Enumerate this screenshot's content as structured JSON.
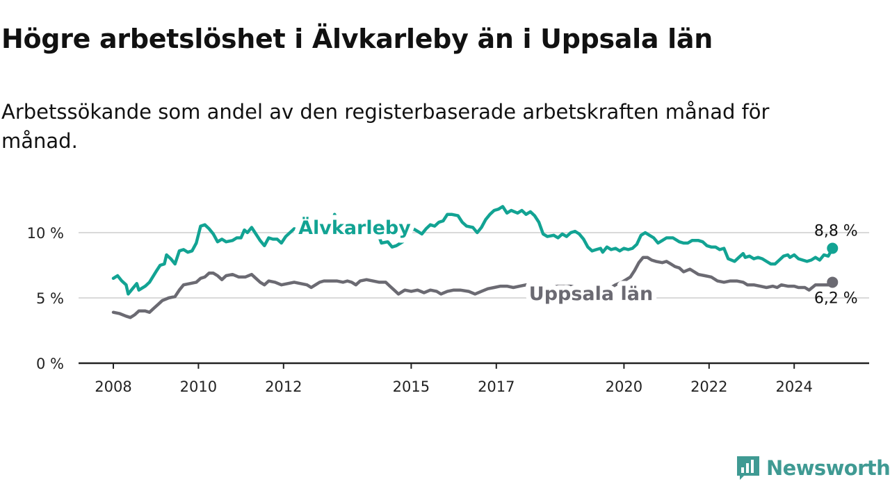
{
  "header": {
    "title": "Högre arbetslöshet i Älvkarleby än i Uppsala län",
    "subtitle": "Arbetssökande som andel av den registerbaserade arbetskraften månad för månad."
  },
  "brand": {
    "name": "Newsworthy",
    "icon": "newsworthy-logo-icon",
    "color": "#3f9a93"
  },
  "chart_data": {
    "type": "line",
    "x_ticks": [
      "2008",
      "2010",
      "2012",
      "2015",
      "2017",
      "2020",
      "2022",
      "2024"
    ],
    "y_ticks": [
      "0 %",
      "5 %",
      "10 %"
    ],
    "ylim": [
      0,
      12.5
    ],
    "xlim": [
      2007.6,
      2025.8
    ],
    "grid": true,
    "series": [
      {
        "name": "Älvkarleby",
        "color": "#12a393",
        "end_label": "8,8 %",
        "points": [
          [
            2008.0,
            6.5
          ],
          [
            2008.1,
            6.7
          ],
          [
            2008.2,
            6.3
          ],
          [
            2008.3,
            6.0
          ],
          [
            2008.35,
            5.3
          ],
          [
            2008.45,
            5.7
          ],
          [
            2008.55,
            6.1
          ],
          [
            2008.6,
            5.6
          ],
          [
            2008.75,
            5.9
          ],
          [
            2008.85,
            6.2
          ],
          [
            2009.0,
            7.0
          ],
          [
            2009.1,
            7.5
          ],
          [
            2009.2,
            7.6
          ],
          [
            2009.25,
            8.3
          ],
          [
            2009.35,
            8.0
          ],
          [
            2009.45,
            7.6
          ],
          [
            2009.55,
            8.6
          ],
          [
            2009.65,
            8.7
          ],
          [
            2009.75,
            8.5
          ],
          [
            2009.85,
            8.6
          ],
          [
            2009.95,
            9.2
          ],
          [
            2010.05,
            10.5
          ],
          [
            2010.15,
            10.6
          ],
          [
            2010.25,
            10.3
          ],
          [
            2010.35,
            9.9
          ],
          [
            2010.45,
            9.3
          ],
          [
            2010.55,
            9.5
          ],
          [
            2010.65,
            9.3
          ],
          [
            2010.8,
            9.4
          ],
          [
            2010.9,
            9.6
          ],
          [
            2011.0,
            9.6
          ],
          [
            2011.08,
            10.2
          ],
          [
            2011.15,
            10.0
          ],
          [
            2011.25,
            10.4
          ],
          [
            2011.35,
            9.9
          ],
          [
            2011.45,
            9.4
          ],
          [
            2011.55,
            9.0
          ],
          [
            2011.65,
            9.6
          ],
          [
            2011.75,
            9.5
          ],
          [
            2011.85,
            9.5
          ],
          [
            2011.95,
            9.2
          ],
          [
            2012.05,
            9.7
          ],
          [
            2012.15,
            10.0
          ],
          [
            2012.25,
            10.3
          ],
          [
            2012.4,
            10.2
          ],
          [
            2012.5,
            10.3
          ],
          [
            2012.6,
            10.3
          ],
          [
            2012.7,
            9.9
          ],
          [
            2012.8,
            10.2
          ],
          [
            2012.9,
            10.0
          ],
          [
            2013.0,
            9.8
          ],
          [
            2013.1,
            10.2
          ],
          [
            2013.2,
            11.4
          ],
          [
            2013.3,
            10.7
          ],
          [
            2013.45,
            10.3
          ],
          [
            2013.6,
            10.2
          ],
          [
            2013.75,
            10.0
          ],
          [
            2013.9,
            9.8
          ],
          [
            2014.05,
            9.8
          ],
          [
            2014.2,
            10.1
          ],
          [
            2014.3,
            9.2
          ],
          [
            2014.45,
            9.3
          ],
          [
            2014.55,
            8.9
          ],
          [
            2014.65,
            9.0
          ],
          [
            2014.8,
            9.3
          ],
          [
            2014.95,
            10.0
          ],
          [
            2015.05,
            10.3
          ],
          [
            2015.15,
            10.1
          ],
          [
            2015.25,
            9.9
          ],
          [
            2015.35,
            10.3
          ],
          [
            2015.45,
            10.6
          ],
          [
            2015.55,
            10.5
          ],
          [
            2015.65,
            10.8
          ],
          [
            2015.75,
            10.9
          ],
          [
            2015.85,
            11.4
          ],
          [
            2015.95,
            11.4
          ],
          [
            2016.1,
            11.3
          ],
          [
            2016.2,
            10.8
          ],
          [
            2016.3,
            10.5
          ],
          [
            2016.45,
            10.4
          ],
          [
            2016.55,
            10.0
          ],
          [
            2016.65,
            10.4
          ],
          [
            2016.75,
            11.0
          ],
          [
            2016.85,
            11.4
          ],
          [
            2016.95,
            11.7
          ],
          [
            2017.05,
            11.8
          ],
          [
            2017.15,
            12.0
          ],
          [
            2017.25,
            11.5
          ],
          [
            2017.35,
            11.7
          ],
          [
            2017.5,
            11.5
          ],
          [
            2017.6,
            11.7
          ],
          [
            2017.7,
            11.4
          ],
          [
            2017.8,
            11.6
          ],
          [
            2017.9,
            11.3
          ],
          [
            2018.0,
            10.8
          ],
          [
            2018.1,
            9.9
          ],
          [
            2018.2,
            9.7
          ],
          [
            2018.35,
            9.8
          ],
          [
            2018.45,
            9.6
          ],
          [
            2018.55,
            9.9
          ],
          [
            2018.65,
            9.7
          ],
          [
            2018.75,
            10.0
          ],
          [
            2018.85,
            10.1
          ],
          [
            2018.95,
            9.9
          ],
          [
            2019.05,
            9.5
          ],
          [
            2019.15,
            8.9
          ],
          [
            2019.25,
            8.6
          ],
          [
            2019.35,
            8.7
          ],
          [
            2019.45,
            8.8
          ],
          [
            2019.5,
            8.5
          ],
          [
            2019.6,
            8.9
          ],
          [
            2019.7,
            8.7
          ],
          [
            2019.8,
            8.8
          ],
          [
            2019.9,
            8.6
          ],
          [
            2020.0,
            8.8
          ],
          [
            2020.1,
            8.7
          ],
          [
            2020.2,
            8.8
          ],
          [
            2020.3,
            9.1
          ],
          [
            2020.4,
            9.8
          ],
          [
            2020.5,
            10.0
          ],
          [
            2020.6,
            9.8
          ],
          [
            2020.7,
            9.6
          ],
          [
            2020.8,
            9.2
          ],
          [
            2020.9,
            9.4
          ],
          [
            2021.0,
            9.6
          ],
          [
            2021.15,
            9.6
          ],
          [
            2021.3,
            9.3
          ],
          [
            2021.4,
            9.2
          ],
          [
            2021.5,
            9.2
          ],
          [
            2021.6,
            9.4
          ],
          [
            2021.75,
            9.4
          ],
          [
            2021.85,
            9.3
          ],
          [
            2021.95,
            9.0
          ],
          [
            2022.05,
            8.9
          ],
          [
            2022.15,
            8.9
          ],
          [
            2022.25,
            8.7
          ],
          [
            2022.35,
            8.8
          ],
          [
            2022.45,
            8.0
          ],
          [
            2022.6,
            7.8
          ],
          [
            2022.7,
            8.1
          ],
          [
            2022.8,
            8.4
          ],
          [
            2022.85,
            8.1
          ],
          [
            2022.95,
            8.2
          ],
          [
            2023.05,
            8.0
          ],
          [
            2023.15,
            8.1
          ],
          [
            2023.25,
            8.0
          ],
          [
            2023.35,
            7.8
          ],
          [
            2023.45,
            7.6
          ],
          [
            2023.55,
            7.6
          ],
          [
            2023.65,
            7.9
          ],
          [
            2023.75,
            8.2
          ],
          [
            2023.85,
            8.3
          ],
          [
            2023.9,
            8.1
          ],
          [
            2024.0,
            8.3
          ],
          [
            2024.1,
            8.0
          ],
          [
            2024.2,
            7.9
          ],
          [
            2024.3,
            7.8
          ],
          [
            2024.4,
            7.9
          ],
          [
            2024.5,
            8.1
          ],
          [
            2024.6,
            7.9
          ],
          [
            2024.7,
            8.3
          ],
          [
            2024.8,
            8.2
          ],
          [
            2024.9,
            8.8
          ]
        ]
      },
      {
        "name": "Uppsala län",
        "color": "#6b6a72",
        "end_label": "6,2 %",
        "points": [
          [
            2008.0,
            3.9
          ],
          [
            2008.15,
            3.8
          ],
          [
            2008.3,
            3.6
          ],
          [
            2008.4,
            3.5
          ],
          [
            2008.5,
            3.7
          ],
          [
            2008.6,
            4.0
          ],
          [
            2008.75,
            4.0
          ],
          [
            2008.85,
            3.9
          ],
          [
            2008.95,
            4.2
          ],
          [
            2009.05,
            4.5
          ],
          [
            2009.15,
            4.8
          ],
          [
            2009.3,
            5.0
          ],
          [
            2009.45,
            5.1
          ],
          [
            2009.55,
            5.6
          ],
          [
            2009.65,
            6.0
          ],
          [
            2009.8,
            6.1
          ],
          [
            2009.95,
            6.2
          ],
          [
            2010.05,
            6.5
          ],
          [
            2010.15,
            6.6
          ],
          [
            2010.25,
            6.9
          ],
          [
            2010.35,
            6.9
          ],
          [
            2010.45,
            6.7
          ],
          [
            2010.55,
            6.4
          ],
          [
            2010.65,
            6.7
          ],
          [
            2010.8,
            6.8
          ],
          [
            2010.95,
            6.6
          ],
          [
            2011.1,
            6.6
          ],
          [
            2011.25,
            6.8
          ],
          [
            2011.35,
            6.5
          ],
          [
            2011.45,
            6.2
          ],
          [
            2011.55,
            6.0
          ],
          [
            2011.65,
            6.3
          ],
          [
            2011.8,
            6.2
          ],
          [
            2011.95,
            6.0
          ],
          [
            2012.1,
            6.1
          ],
          [
            2012.25,
            6.2
          ],
          [
            2012.4,
            6.1
          ],
          [
            2012.55,
            6.0
          ],
          [
            2012.65,
            5.8
          ],
          [
            2012.75,
            6.0
          ],
          [
            2012.85,
            6.2
          ],
          [
            2012.95,
            6.3
          ],
          [
            2013.1,
            6.3
          ],
          [
            2013.25,
            6.3
          ],
          [
            2013.4,
            6.2
          ],
          [
            2013.5,
            6.3
          ],
          [
            2013.6,
            6.2
          ],
          [
            2013.7,
            6.0
          ],
          [
            2013.8,
            6.3
          ],
          [
            2013.95,
            6.4
          ],
          [
            2014.1,
            6.3
          ],
          [
            2014.25,
            6.2
          ],
          [
            2014.4,
            6.2
          ],
          [
            2014.5,
            5.9
          ],
          [
            2014.6,
            5.6
          ],
          [
            2014.7,
            5.3
          ],
          [
            2014.85,
            5.6
          ],
          [
            2015.0,
            5.5
          ],
          [
            2015.15,
            5.6
          ],
          [
            2015.3,
            5.4
          ],
          [
            2015.45,
            5.6
          ],
          [
            2015.6,
            5.5
          ],
          [
            2015.7,
            5.3
          ],
          [
            2015.85,
            5.5
          ],
          [
            2016.0,
            5.6
          ],
          [
            2016.15,
            5.6
          ],
          [
            2016.35,
            5.5
          ],
          [
            2016.5,
            5.3
          ],
          [
            2016.65,
            5.5
          ],
          [
            2016.8,
            5.7
          ],
          [
            2016.95,
            5.8
          ],
          [
            2017.1,
            5.9
          ],
          [
            2017.25,
            5.9
          ],
          [
            2017.4,
            5.8
          ],
          [
            2017.55,
            5.9
          ],
          [
            2017.7,
            6.0
          ],
          [
            2017.85,
            5.9
          ],
          [
            2018.0,
            5.9
          ],
          [
            2018.15,
            5.9
          ],
          [
            2018.3,
            5.8
          ],
          [
            2018.45,
            5.9
          ],
          [
            2018.6,
            5.9
          ],
          [
            2018.75,
            5.9
          ],
          [
            2018.9,
            5.8
          ],
          [
            2019.05,
            5.7
          ],
          [
            2019.2,
            5.6
          ],
          [
            2019.35,
            5.5
          ],
          [
            2019.5,
            5.6
          ],
          [
            2019.65,
            5.7
          ],
          [
            2019.8,
            6.0
          ],
          [
            2019.95,
            6.2
          ],
          [
            2020.05,
            6.4
          ],
          [
            2020.15,
            6.6
          ],
          [
            2020.25,
            7.1
          ],
          [
            2020.35,
            7.7
          ],
          [
            2020.45,
            8.1
          ],
          [
            2020.55,
            8.1
          ],
          [
            2020.65,
            7.9
          ],
          [
            2020.75,
            7.8
          ],
          [
            2020.9,
            7.7
          ],
          [
            2021.0,
            7.8
          ],
          [
            2021.1,
            7.6
          ],
          [
            2021.2,
            7.4
          ],
          [
            2021.3,
            7.3
          ],
          [
            2021.4,
            7.0
          ],
          [
            2021.55,
            7.2
          ],
          [
            2021.65,
            7.0
          ],
          [
            2021.75,
            6.8
          ],
          [
            2021.9,
            6.7
          ],
          [
            2022.05,
            6.6
          ],
          [
            2022.2,
            6.3
          ],
          [
            2022.35,
            6.2
          ],
          [
            2022.5,
            6.3
          ],
          [
            2022.65,
            6.3
          ],
          [
            2022.8,
            6.2
          ],
          [
            2022.9,
            6.0
          ],
          [
            2023.05,
            6.0
          ],
          [
            2023.2,
            5.9
          ],
          [
            2023.35,
            5.8
          ],
          [
            2023.5,
            5.9
          ],
          [
            2023.6,
            5.8
          ],
          [
            2023.7,
            6.0
          ],
          [
            2023.85,
            5.9
          ],
          [
            2024.0,
            5.9
          ],
          [
            2024.1,
            5.8
          ],
          [
            2024.25,
            5.8
          ],
          [
            2024.35,
            5.6
          ],
          [
            2024.5,
            6.0
          ],
          [
            2024.65,
            6.0
          ],
          [
            2024.8,
            6.0
          ],
          [
            2024.9,
            6.2
          ]
        ]
      }
    ]
  }
}
